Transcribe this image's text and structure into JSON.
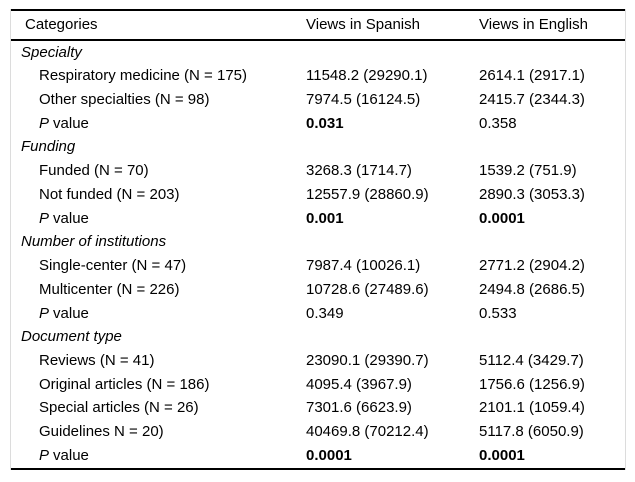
{
  "table": {
    "header": {
      "categories": "Categories",
      "views_spanish": "Views in Spanish",
      "views_english": "Views in English"
    },
    "sections": [
      {
        "title": "Specialty",
        "rows": [
          {
            "label": "Respiratory medicine (N = 175)",
            "spanish": "11548.2 (29290.1)",
            "english": "2614.1 (2917.1)"
          },
          {
            "label": "Other specialties (N = 98)",
            "spanish": "7974.5 (16124.5)",
            "english": "2415.7 (2344.3)"
          }
        ],
        "p_row": {
          "p": "P",
          "label": "value",
          "spanish": "0.031",
          "english": "0.358"
        }
      },
      {
        "title": "Funding",
        "rows": [
          {
            "label": "Funded (N = 70)",
            "spanish": "3268.3 (1714.7)",
            "english": "1539.2 (751.9)"
          },
          {
            "label": "Not funded (N = 203)",
            "spanish": "12557.9 (28860.9)",
            "english": "2890.3 (3053.3)"
          }
        ],
        "p_row": {
          "p": "P",
          "label": "value",
          "spanish": "0.001",
          "english": "0.0001"
        }
      },
      {
        "title": "Number of institutions",
        "rows": [
          {
            "label": "Single-center (N = 47)",
            "spanish": "7987.4 (10026.1)",
            "english": "2771.2 (2904.2)"
          },
          {
            "label": "Multicenter (N = 226)",
            "spanish": "10728.6 (27489.6)",
            "english": "2494.8 (2686.5)"
          }
        ],
        "p_row": {
          "p": "P",
          "label": "value",
          "spanish": "0.349",
          "english": "0.533"
        }
      },
      {
        "title": "Document type",
        "rows": [
          {
            "label": "Reviews (N = 41)",
            "spanish": "23090.1 (29390.7)",
            "english": "5112.4 (3429.7)"
          },
          {
            "label": "Original articles (N = 186)",
            "spanish": "4095.4 (3967.9)",
            "english": "1756.6 (1256.9)"
          },
          {
            "label": "Special articles (N = 26)",
            "spanish": "7301.6 (6623.9)",
            "english": "2101.1 (1059.4)"
          },
          {
            "label": "Guidelines N = 20)",
            "spanish": "40469.8 (70212.4)",
            "english": "5117.8 (6050.9)"
          }
        ],
        "p_row": {
          "p": "P",
          "label": "value",
          "spanish": "0.0001",
          "english": "0.0001"
        }
      }
    ]
  }
}
